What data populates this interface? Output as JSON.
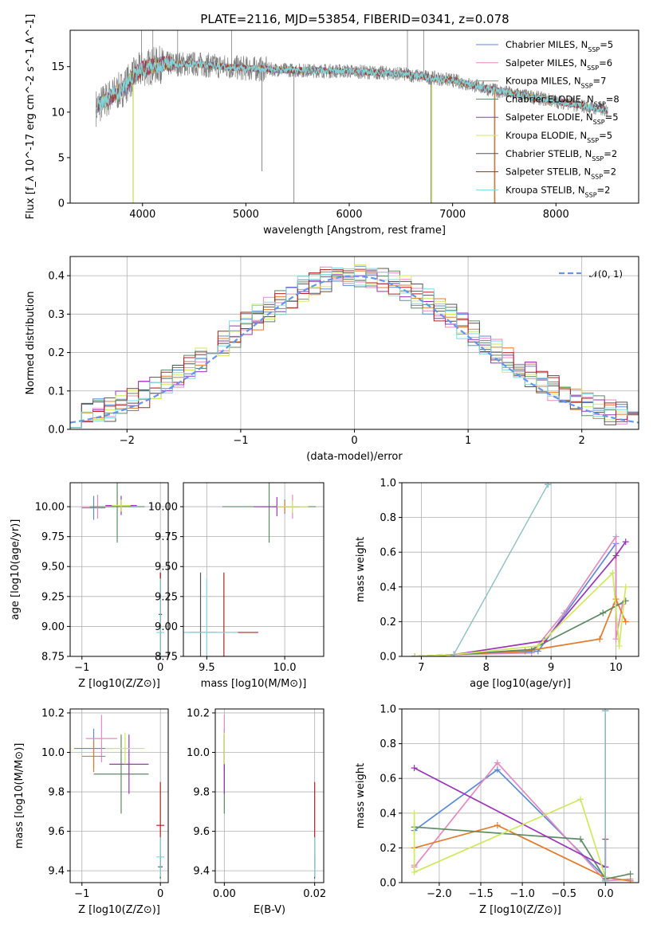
{
  "title": "PLATE=2116, MJD=53854, FIBERID=0341, z=0.078",
  "models": [
    {
      "name": "Chabrier MILES, N_SSP=5",
      "color": "#5b8bd6"
    },
    {
      "name": "Salpeter MILES, N_SSP=6",
      "color": "#e38bc0"
    },
    {
      "name": "Kroupa MILES, N_SSP=7",
      "color": "#e07b2e"
    },
    {
      "name": "Chabrier ELODIE, N_SSP=8",
      "color": "#5e8a64"
    },
    {
      "name": "Salpeter ELODIE, N_SSP=5",
      "color": "#9a35b8"
    },
    {
      "name": "Kroupa ELODIE, N_SSP=5",
      "color": "#cfe95d"
    },
    {
      "name": "Chabrier STELIB, N_SSP=2",
      "color": "#555555"
    },
    {
      "name": "Salpeter STELIB, N_SSP=2",
      "color": "#b22222"
    },
    {
      "name": "Kroupa STELIB, N_SSP=2",
      "color": "#7fd8dc"
    }
  ],
  "legend_labels": [
    {
      "pre": "Chabrier MILES, N",
      "sub": "SSP",
      "post": "=5"
    },
    {
      "pre": "Salpeter MILES, N",
      "sub": "SSP",
      "post": "=6"
    },
    {
      "pre": "Kroupa MILES, N",
      "sub": "SSP",
      "post": "=7"
    },
    {
      "pre": "Chabrier ELODIE, N",
      "sub": "SSP",
      "post": "=8"
    },
    {
      "pre": "Salpeter ELODIE, N",
      "sub": "SSP",
      "post": "=5"
    },
    {
      "pre": "Kroupa ELODIE, N",
      "sub": "SSP",
      "post": "=5"
    },
    {
      "pre": "Chabrier STELIB, N",
      "sub": "SSP",
      "post": "=2"
    },
    {
      "pre": "Salpeter STELIB, N",
      "sub": "SSP",
      "post": "=2"
    },
    {
      "pre": "Kroupa STELIB, N",
      "sub": "SSP",
      "post": "=2"
    }
  ],
  "chart_data": [
    {
      "id": "spectrum",
      "type": "line",
      "xlabel": "wavelength [Angstrom, rest frame]",
      "ylabel": "Flux [f_λ 10^-17 erg cm^-2 s^-1 A^-1]",
      "xlim": [
        3300,
        8800
      ],
      "ylim": [
        0,
        19
      ],
      "xticks": [
        4000,
        5000,
        6000,
        7000,
        8000
      ],
      "yticks": [
        0,
        5,
        10,
        15
      ],
      "legend_position": "upper-right",
      "grid": false,
      "data_color": "#808080",
      "continuum": {
        "x": [
          3550,
          3700,
          3800,
          3900,
          4000,
          4200,
          4500,
          5000,
          5500,
          6000,
          6500,
          7000,
          7400,
          7800,
          8200,
          8500
        ],
        "y": [
          10.5,
          11.8,
          12.5,
          13.8,
          14.8,
          15.3,
          15.3,
          14.8,
          14.6,
          14.5,
          14.2,
          13.5,
          12.4,
          11.6,
          10.8,
          10.2
        ]
      },
      "absorption_spikes": [
        {
          "x": 3910,
          "y": 0
        },
        {
          "x": 5465,
          "y": 0
        },
        {
          "x": 6790,
          "y": 0
        },
        {
          "x": 7410,
          "y": 0
        },
        {
          "x": 5155,
          "y": 3.5
        }
      ],
      "emission_spikes": [
        {
          "x": 3990,
          "y": 19
        },
        {
          "x": 4100,
          "y": 19
        },
        {
          "x": 4340,
          "y": 19
        },
        {
          "x": 4863,
          "y": 19
        },
        {
          "x": 6563,
          "y": 19
        },
        {
          "x": 6720,
          "y": 19
        }
      ]
    },
    {
      "id": "residuals",
      "type": "histogram",
      "xlabel": "(data-model)/error",
      "ylabel": "Normed distribution",
      "xlim": [
        -2.5,
        2.5
      ],
      "ylim": [
        0,
        0.45
      ],
      "xticks": [
        -2,
        -1,
        0,
        1,
        2
      ],
      "yticks": [
        0.0,
        0.1,
        0.2,
        0.3,
        0.4
      ],
      "grid": true,
      "legend_position": "upper-right",
      "reference_curve": {
        "name": "𝒩(0, 1)",
        "mean": 0,
        "sigma": 1,
        "color": "#6495ed",
        "style": "dashed"
      },
      "bin_width": 0.1,
      "bin_start": -2.5
    },
    {
      "id": "age_vs_Z",
      "type": "errorbar",
      "xlabel": "Z [log10(Z/Z⊙)]",
      "ylabel": "age [log10(age/yr)]",
      "xlim": [
        -1.15,
        0.1
      ],
      "ylim": [
        8.75,
        10.2
      ],
      "xticks": [
        -1,
        0
      ],
      "yticks": [
        8.75,
        9.0,
        9.25,
        9.5,
        9.75,
        10.0
      ],
      "points": [
        {
          "m": 0,
          "x": -0.85,
          "xerr": 0.15,
          "y": 9.99,
          "yerr": 0.1
        },
        {
          "m": 1,
          "x": -0.8,
          "xerr": 0.2,
          "y": 10.0,
          "yerr": 0.1
        },
        {
          "m": 2,
          "x": -0.5,
          "xerr": 0.15,
          "y": 10.01,
          "yerr": 0.05
        },
        {
          "m": 3,
          "x": -0.55,
          "xerr": 0.35,
          "y": 10.0,
          "yerr": 0.3
        },
        {
          "m": 4,
          "x": -0.5,
          "xerr": 0.2,
          "y": 10.01,
          "yerr": 0.08
        },
        {
          "m": 5,
          "x": -0.5,
          "xerr": 0.12,
          "y": 10.01,
          "yerr": 0.05
        },
        {
          "m": 6,
          "x": 0.0,
          "xerr": 0.02,
          "y": 9.1,
          "yerr": 0.35
        },
        {
          "m": 7,
          "x": 0.0,
          "xerr": 0.02,
          "y": 9.1,
          "yerr": 0.35
        },
        {
          "m": 8,
          "x": 0.0,
          "xerr": 0.05,
          "y": 8.95,
          "yerr": 0.45
        }
      ]
    },
    {
      "id": "age_vs_mass",
      "type": "errorbar",
      "xlabel": "mass [log10(M/M⊙)]",
      "ylabel": "",
      "xlim": [
        9.35,
        10.25
      ],
      "ylim": [
        8.75,
        10.2
      ],
      "xticks": [
        9.5,
        10.0
      ],
      "yticks": [
        8.75,
        9.0,
        9.25,
        9.5,
        9.75,
        10.0
      ],
      "points": [
        {
          "m": 0,
          "x": 10.0,
          "xerr": 0.15,
          "y": 10.0,
          "yerr": 0.06
        },
        {
          "m": 1,
          "x": 10.05,
          "xerr": 0.1,
          "y": 10.0,
          "yerr": 0.1
        },
        {
          "m": 2,
          "x": 10.0,
          "xerr": 0.1,
          "y": 10.0,
          "yerr": 0.05
        },
        {
          "m": 3,
          "x": 9.9,
          "xerr": 0.3,
          "y": 10.0,
          "yerr": 0.3
        },
        {
          "m": 4,
          "x": 9.95,
          "xerr": 0.15,
          "y": 10.0,
          "yerr": 0.08
        },
        {
          "m": 5,
          "x": 10.05,
          "xerr": 0.1,
          "y": 10.0,
          "yerr": 0.05
        },
        {
          "m": 6,
          "x": 9.46,
          "xerr": 0.1,
          "y": 8.95,
          "yerr": 0.5
        },
        {
          "m": 7,
          "x": 9.61,
          "xerr": 0.22,
          "y": 8.95,
          "yerr": 0.5
        },
        {
          "m": 8,
          "x": 9.5,
          "xerr": 0.2,
          "y": 8.95,
          "yerr": 0.45
        }
      ]
    },
    {
      "id": "weight_vs_age",
      "type": "line",
      "xlabel": "age [log10(age/yr)]",
      "ylabel": "mass weight",
      "xlim": [
        6.7,
        10.35
      ],
      "ylim": [
        0,
        1.0
      ],
      "xticks": [
        7,
        8,
        9,
        10
      ],
      "yticks": [
        0.0,
        0.2,
        0.4,
        0.6,
        0.8,
        1.0
      ],
      "grid": true,
      "series": [
        {
          "m": 0,
          "x": [
            6.9,
            7.5,
            8.8,
            10.0,
            10.0
          ],
          "y": [
            0.0,
            0.01,
            0.03,
            0.65,
            0.3
          ]
        },
        {
          "m": 1,
          "x": [
            6.9,
            7.5,
            8.7,
            9.2,
            10.0,
            10.0,
            10.1
          ],
          "y": [
            0.0,
            0.01,
            0.02,
            0.25,
            0.69,
            0.1,
            0.3
          ]
        },
        {
          "m": 2,
          "x": [
            6.9,
            7.5,
            8.6,
            9.75,
            10.0,
            10.15
          ],
          "y": [
            0.0,
            0.01,
            0.03,
            0.1,
            0.33,
            0.2
          ]
        },
        {
          "m": 3,
          "x": [
            6.9,
            7.5,
            8.7,
            9.8,
            10.15
          ],
          "y": [
            0.0,
            0.01,
            0.04,
            0.25,
            0.32
          ]
        },
        {
          "m": 4,
          "x": [
            6.9,
            7.5,
            8.9,
            10.0,
            10.15
          ],
          "y": [
            0.0,
            0.01,
            0.09,
            0.58,
            0.66
          ]
        },
        {
          "m": 5,
          "x": [
            6.9,
            7.5,
            8.8,
            9.95,
            10.05,
            10.15
          ],
          "y": [
            0.0,
            0.01,
            0.06,
            0.48,
            0.06,
            0.4
          ]
        },
        {
          "m": 6,
          "x": [
            7.5,
            8.95
          ],
          "y": [
            0.01,
            0.99
          ]
        },
        {
          "m": 7,
          "x": [
            7.5,
            8.95
          ],
          "y": [
            0.01,
            0.99
          ]
        },
        {
          "m": 8,
          "x": [
            7.5,
            8.95
          ],
          "y": [
            0.01,
            0.99
          ]
        }
      ]
    },
    {
      "id": "mass_vs_Z",
      "type": "errorbar",
      "xlabel": "Z [log10(Z/Z⊙)]",
      "ylabel": "mass [log10(M/M⊙)]",
      "xlim": [
        -1.15,
        0.1
      ],
      "ylim": [
        9.34,
        10.22
      ],
      "xticks": [
        -1,
        0
      ],
      "yticks": [
        9.4,
        9.6,
        9.8,
        10.0,
        10.2
      ],
      "points": [
        {
          "m": 0,
          "x": -0.85,
          "xerr": 0.25,
          "y": 10.02,
          "yerr": 0.1
        },
        {
          "m": 1,
          "x": -0.75,
          "xerr": 0.2,
          "y": 10.07,
          "yerr": 0.12
        },
        {
          "m": 2,
          "x": -0.85,
          "xerr": 0.15,
          "y": 9.98,
          "yerr": 0.08
        },
        {
          "m": 3,
          "x": -0.5,
          "xerr": 0.35,
          "y": 9.89,
          "yerr": 0.2
        },
        {
          "m": 4,
          "x": -0.4,
          "xerr": 0.25,
          "y": 9.94,
          "yerr": 0.15
        },
        {
          "m": 5,
          "x": -0.45,
          "xerr": 0.25,
          "y": 10.02,
          "yerr": 0.08
        },
        {
          "m": 6,
          "x": 0.0,
          "xerr": 0.03,
          "y": 9.42,
          "yerr": 0.06
        },
        {
          "m": 7,
          "x": 0.0,
          "xerr": 0.05,
          "y": 9.63,
          "yerr": 0.22
        },
        {
          "m": 8,
          "x": 0.0,
          "xerr": 0.05,
          "y": 9.47,
          "yerr": 0.1
        }
      ]
    },
    {
      "id": "mass_vs_EBV",
      "type": "errorbar",
      "xlabel": "E(B-V)",
      "ylabel": "",
      "xlim": [
        -0.002,
        0.022
      ],
      "ylim": [
        9.34,
        10.22
      ],
      "xticks": [
        0.0,
        0.02
      ],
      "yticks": [
        9.4,
        9.6,
        9.8,
        10.0,
        10.2
      ],
      "points": [
        {
          "m": 0,
          "x": 0.0,
          "xerr": 0,
          "y": 10.02,
          "yerr": 0.1
        },
        {
          "m": 1,
          "x": 0.0,
          "xerr": 0,
          "y": 10.07,
          "yerr": 0.12
        },
        {
          "m": 2,
          "x": 0.0,
          "xerr": 0,
          "y": 9.98,
          "yerr": 0.08
        },
        {
          "m": 3,
          "x": 0.0,
          "xerr": 0,
          "y": 9.89,
          "yerr": 0.2
        },
        {
          "m": 4,
          "x": 0.0,
          "xerr": 0,
          "y": 9.94,
          "yerr": 0.15
        },
        {
          "m": 5,
          "x": 0.0,
          "xerr": 0,
          "y": 10.02,
          "yerr": 0.08
        },
        {
          "m": 6,
          "x": 0.02,
          "xerr": 0,
          "y": 9.42,
          "yerr": 0.06
        },
        {
          "m": 7,
          "x": 0.02,
          "xerr": 0,
          "y": 9.63,
          "yerr": 0.22
        },
        {
          "m": 8,
          "x": 0.02,
          "xerr": 0,
          "y": 9.47,
          "yerr": 0.1
        }
      ]
    },
    {
      "id": "weight_vs_Z",
      "type": "line",
      "xlabel": "Z [log10(Z/Z⊙)]",
      "ylabel": "mass weight",
      "xlim": [
        -2.45,
        0.4
      ],
      "ylim": [
        0,
        1.0
      ],
      "xticks": [
        -2.0,
        -1.5,
        -1.0,
        -0.5,
        0.0
      ],
      "yticks": [
        0.0,
        0.2,
        0.4,
        0.6,
        0.8,
        1.0
      ],
      "grid": true,
      "series": [
        {
          "m": 0,
          "x": [
            -2.3,
            -1.3,
            0.0,
            0.3
          ],
          "y": [
            0.3,
            0.65,
            0.03,
            0.01
          ]
        },
        {
          "m": 1,
          "x": [
            -2.3,
            -2.3,
            -1.3,
            0.0,
            0.3
          ],
          "y": [
            0.1,
            0.09,
            0.69,
            0.01,
            0.02
          ]
        },
        {
          "m": 2,
          "x": [
            -2.3,
            -1.3,
            0.0,
            0.3
          ],
          "y": [
            0.2,
            0.33,
            0.03,
            0.01
          ]
        },
        {
          "m": 3,
          "x": [
            -2.3,
            -0.3,
            0.0,
            0.3
          ],
          "y": [
            0.32,
            0.25,
            0.02,
            0.05
          ]
        },
        {
          "m": 4,
          "x": [
            -2.3,
            0.0,
            0.0
          ],
          "y": [
            0.66,
            0.09,
            0.25
          ]
        },
        {
          "m": 5,
          "x": [
            -2.3,
            -2.3,
            -0.3,
            0.0,
            0.0
          ],
          "y": [
            0.4,
            0.06,
            0.48,
            0.03,
            0.01
          ]
        },
        {
          "m": 6,
          "x": [
            0.0,
            0.0
          ],
          "y": [
            0.01,
            0.99
          ]
        },
        {
          "m": 7,
          "x": [
            0.0,
            0.0
          ],
          "y": [
            0.01,
            0.99
          ]
        },
        {
          "m": 8,
          "x": [
            0.0,
            0.0
          ],
          "y": [
            0.01,
            0.99
          ]
        }
      ]
    }
  ]
}
